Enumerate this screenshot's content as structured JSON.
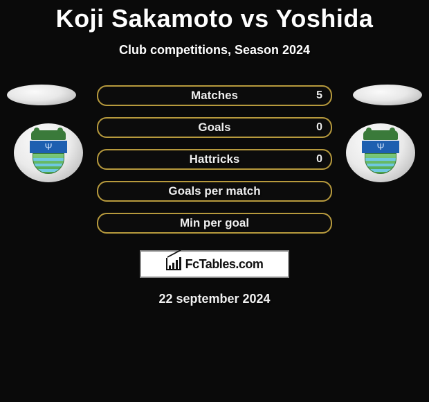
{
  "header": {
    "title": "Koji Sakamoto vs Yoshida",
    "subtitle": "Club competitions, Season 2024"
  },
  "stats": [
    {
      "label": "Matches",
      "value": "5",
      "border_color": "#b79a3d"
    },
    {
      "label": "Goals",
      "value": "0",
      "border_color": "#b79a3d"
    },
    {
      "label": "Hattricks",
      "value": "0",
      "border_color": "#b79a3d"
    },
    {
      "label": "Goals per match",
      "value": "",
      "border_color": "#b79a3d"
    },
    {
      "label": "Min per goal",
      "value": "",
      "border_color": "#b79a3d"
    }
  ],
  "footer": {
    "brand": "FcTables.com",
    "date": "22 september 2024"
  },
  "badge": {
    "primary_blue": "#1e5fb0",
    "primary_green": "#4aa54a",
    "wave_color": "#6fc8e0"
  },
  "styling": {
    "background": "#0a0a0a",
    "title_fontsize": 36,
    "subtitle_fontsize": 18,
    "stat_row_width": 340,
    "stat_row_height": 30,
    "stat_border_radius": 14,
    "brand_box_bg": "#ffffff",
    "brand_box_border": "#8a8a8a"
  }
}
